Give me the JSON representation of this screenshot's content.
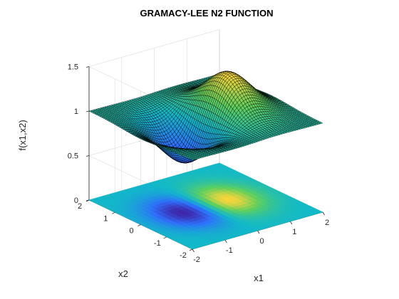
{
  "chart_data": {
    "type": "surface",
    "title": "GRAMACY-LEE N2 FUNCTION",
    "xlabel": "x1",
    "ylabel": "x2",
    "zlabel": "f(x1,x2)",
    "xlim": [
      -2,
      2
    ],
    "ylim": [
      -2,
      2
    ],
    "zlim": [
      0,
      1.5
    ],
    "x_ticks": [
      "-2",
      "-1",
      "0",
      "1",
      "2"
    ],
    "y_ticks": [
      "-2",
      "-1",
      "0",
      "1",
      "2"
    ],
    "z_ticks": [
      "0",
      "0.5",
      "1",
      "1.5"
    ],
    "grid": true,
    "projected_contour_at_z": 0,
    "colormap": [
      "#3e26a8",
      "#2f6ffb",
      "#12b9c8",
      "#5fd05c",
      "#f9d53a"
    ],
    "surface_formula": "1 + x1*exp(-x1^2 - x2^2)",
    "notable_points": [
      {
        "name": "minimum",
        "x1": -0.71,
        "x2": 0,
        "z": 0.57
      },
      {
        "name": "maximum",
        "x1": 0.71,
        "x2": 0,
        "z": 1.43
      }
    ]
  }
}
